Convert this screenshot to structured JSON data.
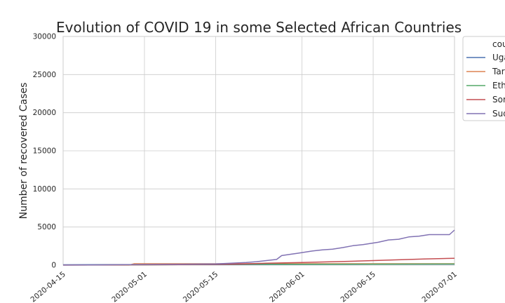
{
  "chart_data": {
    "type": "line",
    "title": "Evolution of COVID 19 in some Selected African Countries",
    "xlabel": "",
    "ylabel": "Number of recovered Cases",
    "x_ticks": [
      "2020-04-15",
      "2020-05-01",
      "2020-05-15",
      "2020-06-01",
      "2020-06-15",
      "2020-07-01"
    ],
    "xlim": [
      "2020-04-15",
      "2020-07-01"
    ],
    "y_ticks": [
      "0",
      "5000",
      "10000",
      "15000",
      "20000",
      "25000",
      "30000"
    ],
    "ylim": [
      0,
      30000
    ],
    "grid": true,
    "legend": {
      "title": "cou",
      "placement": "outside-right, clipped",
      "entries": [
        "Uga",
        "Tar",
        "Eth",
        "Sor",
        "Sud"
      ]
    },
    "series": [
      {
        "name": "Uganda",
        "legend_label": "Uga",
        "color": "#4c72b0",
        "x": [
          "2020-04-15",
          "2020-05-01",
          "2020-05-15",
          "2020-06-01",
          "2020-06-15",
          "2020-07-01"
        ],
        "y": [
          50,
          60,
          70,
          90,
          110,
          130
        ]
      },
      {
        "name": "Tanzania",
        "legend_label": "Tar",
        "color": "#dd8452",
        "x": [
          "2020-04-15",
          "2020-04-28",
          "2020-04-29",
          "2020-05-15",
          "2020-06-01",
          "2020-06-15",
          "2020-07-01"
        ],
        "y": [
          10,
          10,
          180,
          180,
          180,
          180,
          180
        ]
      },
      {
        "name": "Ethiopia",
        "legend_label": "Eth",
        "color": "#55a868",
        "x": [
          "2020-04-15",
          "2020-05-01",
          "2020-05-15",
          "2020-06-01",
          "2020-06-15",
          "2020-07-01"
        ],
        "y": [
          20,
          40,
          100,
          120,
          130,
          150
        ]
      },
      {
        "name": "Somalia",
        "legend_label": "Sor",
        "color": "#c44e52",
        "x": [
          "2020-04-15",
          "2020-05-01",
          "2020-05-15",
          "2020-05-20",
          "2020-05-25",
          "2020-06-01",
          "2020-06-10",
          "2020-06-15",
          "2020-06-20",
          "2020-06-25",
          "2020-07-01"
        ],
        "y": [
          10,
          50,
          100,
          150,
          250,
          350,
          500,
          600,
          700,
          800,
          900
        ]
      },
      {
        "name": "Sudan",
        "legend_label": "Sud",
        "color": "#8172b3",
        "x": [
          "2020-04-15",
          "2020-04-22",
          "2020-05-01",
          "2020-05-08",
          "2020-05-15",
          "2020-05-18",
          "2020-05-21",
          "2020-05-23",
          "2020-05-25",
          "2020-05-27",
          "2020-05-28",
          "2020-05-30",
          "2020-05-31",
          "2020-06-01",
          "2020-06-03",
          "2020-06-05",
          "2020-06-07",
          "2020-06-09",
          "2020-06-11",
          "2020-06-13",
          "2020-06-15",
          "2020-06-16",
          "2020-06-18",
          "2020-06-20",
          "2020-06-22",
          "2020-06-24",
          "2020-06-26",
          "2020-06-28",
          "2020-06-30",
          "2020-07-01"
        ],
        "y": [
          10,
          30,
          80,
          120,
          170,
          250,
          350,
          450,
          600,
          750,
          1250,
          1450,
          1550,
          1650,
          1850,
          2000,
          2100,
          2300,
          2550,
          2700,
          2900,
          3000,
          3300,
          3400,
          3700,
          3800,
          4000,
          4000,
          4000,
          4600
        ]
      }
    ]
  }
}
